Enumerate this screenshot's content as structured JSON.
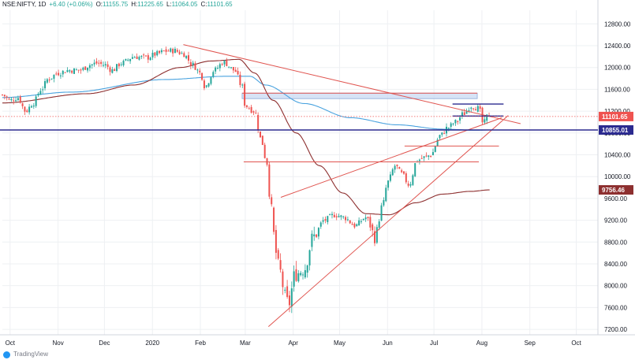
{
  "header": {
    "symbol": "NSE:NIFTY, 1D",
    "change": "+6.40 (+0.06%)",
    "open_label": "O:",
    "open": "11155.75",
    "high_label": "H:",
    "high": "11225.65",
    "low_label": "L:",
    "low": "11064.05",
    "close_label": "C:",
    "close": "11101.65",
    "last_price": "11101.65"
  },
  "footer": {
    "text": "TradingView"
  },
  "colors": {
    "up": "#26a69a",
    "down": "#ef5350",
    "sma50": "#8d2f2f",
    "sma200": "#4aa3df",
    "trend": "#e0544f",
    "support": "#2b2a8f",
    "zone": "#c9d9f3"
  },
  "chart_data": {
    "type": "candlestick",
    "x_tick_labels": [
      "Oct",
      "Nov",
      "Dec",
      "2020",
      "Feb",
      "Mar",
      "Apr",
      "May",
      "Jun",
      "Jul",
      "Aug",
      "Sep",
      "Oct"
    ],
    "y_tick_labels": [
      "12800.00",
      "12400.00",
      "12000.00",
      "11600.00",
      "11200.00",
      "10800.00",
      "10400.00",
      "10000.00",
      "9600.00",
      "9200.00",
      "8800.00",
      "8400.00",
      "8000.00",
      "7600.00",
      "7200.00"
    ],
    "y_ticks": [
      12800,
      12400,
      12000,
      11600,
      11200,
      10800,
      10400,
      10000,
      9600,
      9200,
      8800,
      8400,
      8000,
      7600,
      7200
    ],
    "ylim": [
      7100,
      13050
    ],
    "x_range_days": [
      -5,
      380
    ],
    "month_ticks_days": [
      0,
      31,
      61,
      92,
      123,
      152,
      183,
      213,
      244,
      274,
      305,
      336,
      366
    ],
    "price_labels": [
      {
        "name": "last-price",
        "value": 11101.65,
        "text": "11101.65",
        "color": "#ef5350"
      },
      {
        "name": "support-level",
        "value": 10855.01,
        "text": "10855.01",
        "color": "#2b2a8f"
      },
      {
        "name": "sma-50",
        "value": 9756.46,
        "text": "9756.46",
        "color": "#8d2f2f"
      }
    ],
    "anchors": [
      {
        "day": -5,
        "close": 11500
      },
      {
        "day": 0,
        "close": 11400
      },
      {
        "day": 5,
        "close": 11450
      },
      {
        "day": 10,
        "close": 11200
      },
      {
        "day": 15,
        "close": 11350
      },
      {
        "day": 20,
        "close": 11600
      },
      {
        "day": 25,
        "close": 11800
      },
      {
        "day": 31,
        "close": 11900
      },
      {
        "day": 38,
        "close": 11950
      },
      {
        "day": 45,
        "close": 11950
      },
      {
        "day": 52,
        "close": 12050
      },
      {
        "day": 56,
        "close": 12080
      },
      {
        "day": 61,
        "close": 12050
      },
      {
        "day": 66,
        "close": 11950
      },
      {
        "day": 72,
        "close": 12080
      },
      {
        "day": 80,
        "close": 12200
      },
      {
        "day": 88,
        "close": 12180
      },
      {
        "day": 95,
        "close": 12250
      },
      {
        "day": 100,
        "close": 12300
      },
      {
        "day": 106,
        "close": 12310
      },
      {
        "day": 112,
        "close": 12250
      },
      {
        "day": 118,
        "close": 12050
      },
      {
        "day": 123,
        "close": 11900
      },
      {
        "day": 126,
        "close": 11650
      },
      {
        "day": 132,
        "close": 11950
      },
      {
        "day": 138,
        "close": 12100
      },
      {
        "day": 145,
        "close": 11950
      },
      {
        "day": 150,
        "close": 11650
      },
      {
        "day": 152,
        "close": 11300
      },
      {
        "day": 158,
        "close": 11200
      },
      {
        "day": 162,
        "close": 10700
      },
      {
        "day": 166,
        "close": 10250
      },
      {
        "day": 168,
        "close": 9600
      },
      {
        "day": 172,
        "close": 8600
      },
      {
        "day": 174,
        "close": 8300
      },
      {
        "day": 178,
        "close": 7800
      },
      {
        "day": 180,
        "close": 7650
      },
      {
        "day": 184,
        "close": 8200
      },
      {
        "day": 190,
        "close": 8300
      },
      {
        "day": 196,
        "close": 8900
      },
      {
        "day": 203,
        "close": 9200
      },
      {
        "day": 210,
        "close": 9300
      },
      {
        "day": 216,
        "close": 9250
      },
      {
        "day": 223,
        "close": 9100
      },
      {
        "day": 230,
        "close": 9250
      },
      {
        "day": 236,
        "close": 8900
      },
      {
        "day": 241,
        "close": 9500
      },
      {
        "day": 244,
        "close": 9900
      },
      {
        "day": 249,
        "close": 10200
      },
      {
        "day": 253,
        "close": 10050
      },
      {
        "day": 258,
        "close": 9850
      },
      {
        "day": 263,
        "close": 10300
      },
      {
        "day": 268,
        "close": 10350
      },
      {
        "day": 272,
        "close": 10400
      },
      {
        "day": 278,
        "close": 10750
      },
      {
        "day": 283,
        "close": 10900
      },
      {
        "day": 288,
        "close": 11000
      },
      {
        "day": 293,
        "close": 11150
      },
      {
        "day": 298,
        "close": 11300
      },
      {
        "day": 303,
        "close": 11250
      },
      {
        "day": 306,
        "close": 10950
      },
      {
        "day": 308,
        "close": 11100
      },
      {
        "day": 310,
        "close": 11101.65
      }
    ],
    "sma_50": [
      {
        "day": -5,
        "value": 11350
      },
      {
        "day": 50,
        "value": 11520
      },
      {
        "day": 80,
        "value": 11680
      },
      {
        "day": 110,
        "value": 12000
      },
      {
        "day": 130,
        "value": 12120
      },
      {
        "day": 148,
        "value": 12150
      },
      {
        "day": 158,
        "value": 11900
      },
      {
        "day": 170,
        "value": 11400
      },
      {
        "day": 185,
        "value": 10800
      },
      {
        "day": 200,
        "value": 10200
      },
      {
        "day": 215,
        "value": 9700
      },
      {
        "day": 230,
        "value": 9320
      },
      {
        "day": 245,
        "value": 9300
      },
      {
        "day": 262,
        "value": 9520
      },
      {
        "day": 280,
        "value": 9680
      },
      {
        "day": 298,
        "value": 9730
      },
      {
        "day": 310,
        "value": 9756.46
      }
    ],
    "sma_200": [
      {
        "day": -5,
        "value": 11450
      },
      {
        "day": 40,
        "value": 11550
      },
      {
        "day": 100,
        "value": 11780
      },
      {
        "day": 140,
        "value": 11840
      },
      {
        "day": 155,
        "value": 11840
      },
      {
        "day": 165,
        "value": 11680
      },
      {
        "day": 190,
        "value": 11340
      },
      {
        "day": 220,
        "value": 11080
      },
      {
        "day": 250,
        "value": 10950
      },
      {
        "day": 280,
        "value": 10870
      },
      {
        "day": 300,
        "value": 10850
      },
      {
        "day": 310,
        "value": 10855.01
      }
    ],
    "drawings": {
      "trend_lines": [
        {
          "name": "downtrend-line",
          "from": [
            112,
            12420
          ],
          "to": [
            330,
            10970
          ]
        },
        {
          "name": "rising-support-line",
          "from": [
            167,
            7250
          ],
          "to": [
            322,
            11120
          ]
        },
        {
          "name": "rising-upper-line",
          "from": [
            175,
            9620
          ],
          "to": [
            318,
            11080
          ]
        }
      ],
      "horizontal_segments": [
        {
          "name": "resistance-zone-top",
          "from": 150,
          "to": 302,
          "value": 11530
        },
        {
          "name": "neckline-10260",
          "from": 151,
          "to": 303,
          "value": 10270
        },
        {
          "name": "level-10550",
          "from": 255,
          "to": 316,
          "value": 10560
        },
        {
          "name": "level-11330",
          "from": 286,
          "to": 319,
          "value": 11330
        },
        {
          "name": "level-11100",
          "from": 286,
          "to": 319,
          "value": 11110
        }
      ],
      "zone": {
        "name": "resistance-zone",
        "from": 150,
        "to": 302,
        "low": 11430,
        "high": 11530
      },
      "support_line": {
        "value": 10855.01
      }
    }
  }
}
